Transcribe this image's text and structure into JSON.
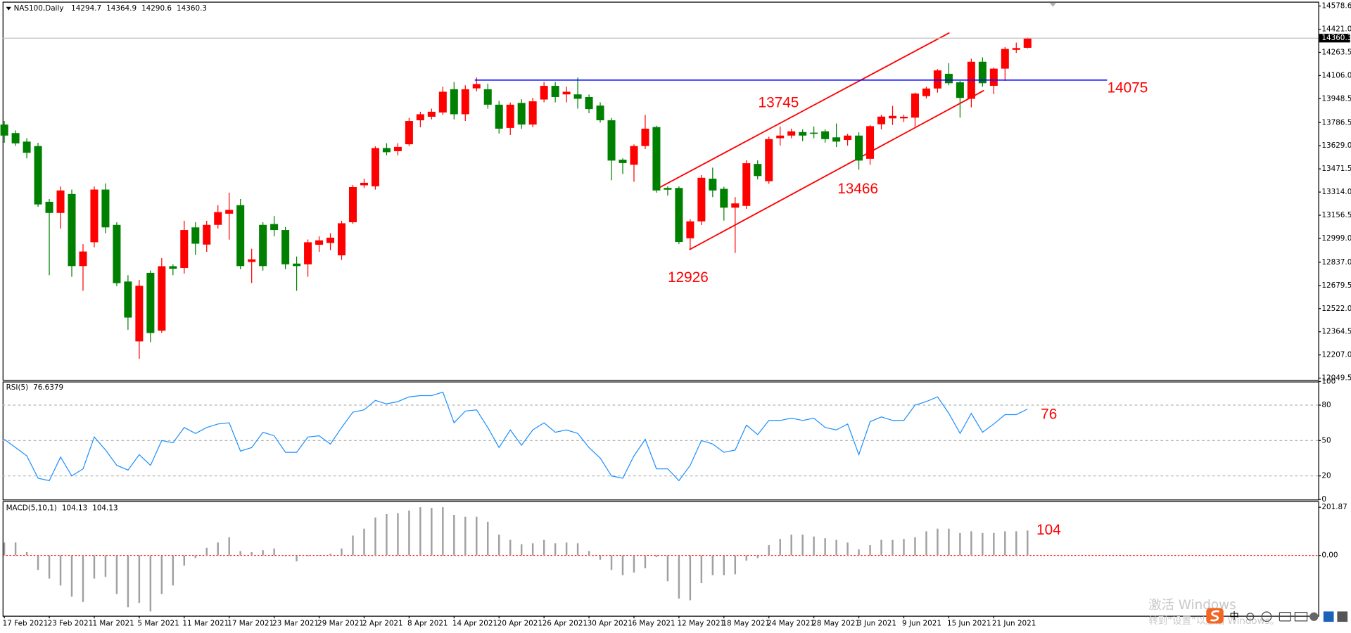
{
  "chart_data": [
    {
      "type": "candlestick",
      "symbol": "NAS100,Daily",
      "bull_color": "#ff0000",
      "bear_color": "#008000",
      "categories": [
        "17 Feb 2021",
        null,
        null,
        null,
        "23 Feb 2021",
        null,
        null,
        null,
        "1 Mar 2021",
        null,
        null,
        null,
        "5 Mar 2021",
        null,
        null,
        null,
        "11 Mar 2021",
        null,
        null,
        null,
        "17 Mar 2021",
        null,
        null,
        null,
        "23 Mar 2021",
        null,
        null,
        null,
        "29 Mar 2021",
        null,
        null,
        null,
        "2 Apr 2021",
        null,
        null,
        null,
        "8 Apr 2021",
        null,
        null,
        null,
        "14 Apr 2021",
        null,
        null,
        null,
        "20 Apr 2021",
        null,
        null,
        null,
        "26 Apr 2021",
        null,
        null,
        null,
        "30 Apr 2021",
        null,
        null,
        null,
        "6 May 2021",
        null,
        null,
        null,
        "12 May 2021",
        null,
        null,
        null,
        "18 May 2021",
        null,
        null,
        null,
        "24 May 2021",
        null,
        null,
        null,
        "28 May 2021",
        null,
        null,
        null,
        "3 Jun 2021",
        null,
        null,
        null,
        "9 Jun 2021",
        null,
        null,
        null,
        "15 Jun 2021",
        null,
        null,
        null,
        "21 Jun 2021",
        null,
        null,
        null
      ],
      "open": [
        13773,
        13715,
        13657,
        13627,
        13248,
        13172,
        13301,
        12811,
        12973,
        13331,
        13091,
        12706,
        12299,
        12765,
        12372,
        12810,
        12798,
        13074,
        12957,
        13091,
        13167,
        13225,
        12839,
        13091,
        13097,
        13056,
        12828,
        12823,
        12956,
        12968,
        12884,
        13109,
        13360,
        13353,
        13613,
        13592,
        13639,
        13802,
        13826,
        13855,
        14013,
        13843,
        14019,
        14013,
        13908,
        13750,
        13920,
        13773,
        13943,
        14036,
        13978,
        13978,
        13960,
        13902,
        13802,
        13534,
        13500,
        13627,
        13756,
        13342,
        13342,
        13000,
        13115,
        13405,
        13336,
        13208,
        13220,
        13505,
        13388,
        13680,
        13698,
        13722,
        13718,
        13727,
        13686,
        13668,
        13698,
        13540,
        13775,
        13815,
        13815,
        13820,
        13966,
        14018,
        14118,
        14060,
        13948,
        14200,
        14036,
        14153,
        14281,
        14294.7
      ],
      "high": [
        13797,
        13733,
        13680,
        13649,
        13267,
        13352,
        13331,
        12960,
        13352,
        13373,
        13109,
        12749,
        12717,
        12781,
        12865,
        12823,
        13119,
        13109,
        13119,
        13225,
        13310,
        13267,
        12929,
        13109,
        13151,
        13077,
        12876,
        12992,
        13013,
        13034,
        13119,
        13363,
        13405,
        13625,
        13646,
        13646,
        13818,
        13860,
        13881,
        14030,
        14062,
        14040,
        14093,
        14051,
        13934,
        13923,
        13945,
        13955,
        14062,
        14062,
        14030,
        14093,
        13977,
        13924,
        13818,
        13543,
        13638,
        13839,
        13765,
        13353,
        13353,
        13130,
        13430,
        13480,
        13350,
        13280,
        13530,
        13530,
        13690,
        13760,
        13745,
        13740,
        13760,
        13740,
        13780,
        13710,
        13720,
        13770,
        13840,
        13900,
        13840,
        13990,
        14030,
        14150,
        14190,
        14070,
        14220,
        14230,
        14160,
        14300,
        14330,
        14364.9
      ],
      "low": [
        13649,
        13628,
        13543,
        13214,
        12749,
        13066,
        12738,
        12643,
        12939,
        13034,
        12675,
        12378,
        12180,
        12294,
        12357,
        12749,
        12760,
        12887,
        12908,
        13066,
        12991,
        12790,
        12696,
        12780,
        13013,
        12790,
        12643,
        12738,
        12908,
        12919,
        12853,
        13098,
        13342,
        13331,
        13564,
        13564,
        13627,
        13754,
        13808,
        13839,
        13808,
        13797,
        13998,
        13881,
        13712,
        13702,
        13744,
        13754,
        13924,
        13924,
        13924,
        13881,
        13850,
        13786,
        13394,
        13437,
        13384,
        13606,
        13310,
        13290,
        12960,
        12926,
        13090,
        13280,
        13120,
        12900,
        13200,
        13400,
        13370,
        13630,
        13680,
        13660,
        13680,
        13650,
        13620,
        13630,
        13466,
        13500,
        13740,
        13770,
        13790,
        13760,
        13950,
        13990,
        14040,
        13820,
        13890,
        14030,
        13980,
        14070,
        14260,
        14290.6
      ],
      "close": [
        13698,
        13645,
        13581,
        13230,
        13172,
        13325,
        12811,
        12910,
        13331,
        13074,
        12695,
        12461,
        12677,
        12356,
        12810,
        12793,
        13056,
        12963,
        13091,
        13178,
        13193,
        12811,
        12857,
        12811,
        13056,
        12823,
        12811,
        12973,
        12986,
        13004,
        13102,
        13348,
        13377,
        13613,
        13585,
        13621,
        13797,
        13843,
        13860,
        13996,
        13843,
        14013,
        14048,
        13908,
        13745,
        13908,
        13773,
        13931,
        14036,
        13960,
        13996,
        13948,
        13878,
        13802,
        13528,
        13511,
        13627,
        13745,
        13325,
        13330,
        12975,
        13115,
        13411,
        13325,
        13208,
        13237,
        13510,
        13423,
        13674,
        13698,
        13727,
        13698,
        13710,
        13674,
        13657,
        13698,
        13528,
        13762,
        13827,
        13832,
        13826,
        13984,
        14018,
        14141,
        14054,
        13954,
        14200,
        14054,
        14153,
        14287,
        14293,
        14360.3
      ],
      "ylim": [
        12038,
        14602
      ],
      "yticks": [
        {
          "value": 14578.6,
          "label": "14578.6"
        },
        {
          "value": 14421.0,
          "label": "14421.0"
        },
        {
          "value": 14263.5,
          "label": "14263.5"
        },
        {
          "value": 14106.0,
          "label": "14106.0"
        },
        {
          "value": 13948.5,
          "label": "13948.5"
        },
        {
          "value": 13786.5,
          "label": "13786.5"
        },
        {
          "value": 13629.0,
          "label": "13629.0"
        },
        {
          "value": 13471.5,
          "label": "13471.5"
        },
        {
          "value": 13314.0,
          "label": "13314.0"
        },
        {
          "value": 13156.5,
          "label": "13156.5"
        },
        {
          "value": 12999.0,
          "label": "12999.0"
        },
        {
          "value": 12837.0,
          "label": "12837.0"
        },
        {
          "value": 12679.5,
          "label": "12679.5"
        },
        {
          "value": 12522.0,
          "label": "12522.0"
        },
        {
          "value": 12364.5,
          "label": "12364.5"
        },
        {
          "value": 12207.0,
          "label": "12207.0"
        },
        {
          "value": 12049.5,
          "label": "12049.5"
        }
      ],
      "annotations": [
        14075,
        13745,
        13466,
        12926
      ],
      "level_color": "#0000ff",
      "annotation_color": "#ff0000",
      "grid": false
    },
    {
      "type": "line",
      "name": "RSI(5)",
      "color": "#1e90ff",
      "values": [
        51,
        44,
        37,
        18,
        16,
        36,
        20,
        26,
        53,
        42,
        29,
        25,
        38,
        29,
        50,
        48,
        61,
        56,
        61,
        64,
        65,
        41,
        44,
        57,
        54,
        40,
        40,
        53,
        54,
        47,
        61,
        74,
        76,
        84,
        81,
        83,
        87,
        88,
        88,
        91,
        65,
        75,
        76,
        61,
        44,
        59,
        46,
        59,
        65,
        57,
        59,
        56,
        44,
        35,
        20,
        18,
        37,
        51,
        26,
        26,
        16,
        29,
        50,
        47,
        40,
        42,
        63,
        55,
        67,
        67,
        69,
        67,
        69,
        61,
        59,
        64,
        38,
        66,
        70,
        67,
        67,
        80,
        83,
        87,
        73,
        56,
        73,
        57,
        64,
        72,
        72,
        76.6379
      ],
      "ylim": [
        0,
        100
      ],
      "yticks": [
        100,
        80,
        50,
        20,
        0
      ],
      "grid": true,
      "annotations": [
        76
      ]
    },
    {
      "type": "bar",
      "name": "MACD(5,10,1)",
      "color": "#a0a0a0",
      "signal": 104.13,
      "values": [
        54,
        54,
        14,
        -61,
        -97,
        -126,
        -173,
        -195,
        -97,
        -90,
        -162,
        -217,
        -199,
        -235,
        -162,
        -126,
        -43,
        -11,
        32,
        54,
        76,
        18,
        14,
        22,
        29,
        -4,
        -25,
        -4,
        2,
        7,
        29,
        83,
        112,
        159,
        173,
        177,
        188,
        202,
        199,
        202,
        170,
        162,
        162,
        141,
        87,
        65,
        47,
        51,
        65,
        51,
        54,
        51,
        18,
        -18,
        -61,
        -83,
        -72,
        -54,
        -7,
        -108,
        -181,
        -188,
        -116,
        -83,
        -83,
        -79,
        -22,
        -11,
        43,
        69,
        87,
        87,
        79,
        72,
        65,
        54,
        25,
        43,
        65,
        65,
        69,
        76,
        101,
        112,
        112,
        94,
        101,
        94,
        94,
        101,
        101,
        104.13
      ],
      "ylim": [
        -253,
        227
      ],
      "yticks": [
        201.87,
        {
          "value": 0,
          "label": "0.00"
        }
      ],
      "grid": false,
      "zero_line": true,
      "zero_line_color": "#ff0000",
      "annotations": [
        104
      ]
    }
  ],
  "watermark": [
    "激活 Windows",
    "转到“设置”以激活 Windows。"
  ],
  "tray": [
    "中"
  ]
}
